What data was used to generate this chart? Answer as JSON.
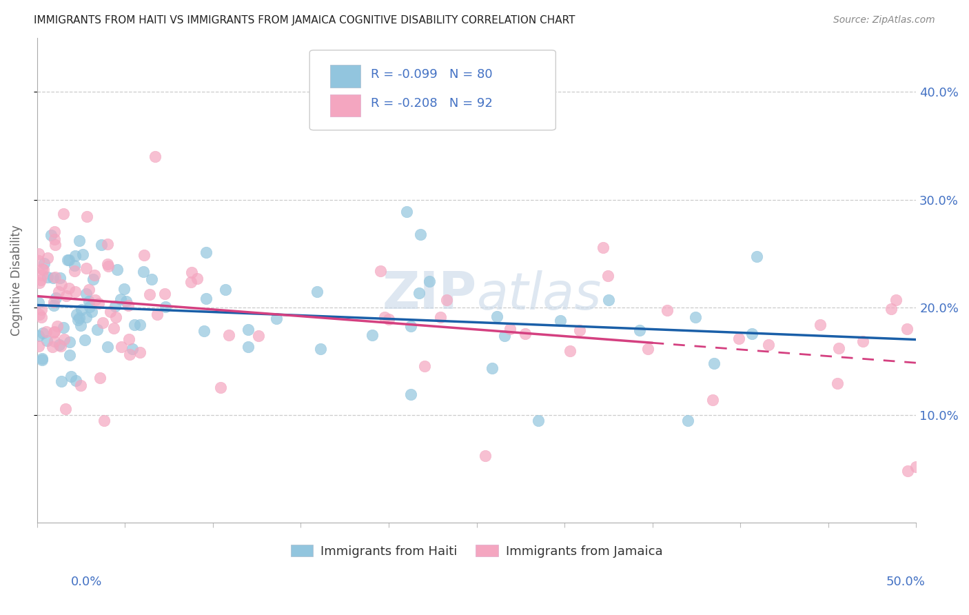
{
  "title": "IMMIGRANTS FROM HAITI VS IMMIGRANTS FROM JAMAICA COGNITIVE DISABILITY CORRELATION CHART",
  "source": "Source: ZipAtlas.com",
  "ylabel": "Cognitive Disability",
  "xlim": [
    0.0,
    0.5
  ],
  "ylim": [
    0.0,
    0.45
  ],
  "right_yticks": [
    0.1,
    0.2,
    0.3,
    0.4
  ],
  "right_yticklabels": [
    "10.0%",
    "20.0%",
    "30.0%",
    "40.0%"
  ],
  "haiti_color": "#92c5de",
  "jamaica_color": "#f4a6c0",
  "haiti_line_color": "#1a5fa8",
  "jamaica_line_color": "#d44080",
  "watermark_color": "#c8d8e8",
  "haiti_R": -0.099,
  "haiti_N": 80,
  "jamaica_R": -0.208,
  "jamaica_N": 92,
  "tick_color": "#4472c4",
  "grid_color": "#cccccc",
  "legend_border_color": "#cccccc"
}
